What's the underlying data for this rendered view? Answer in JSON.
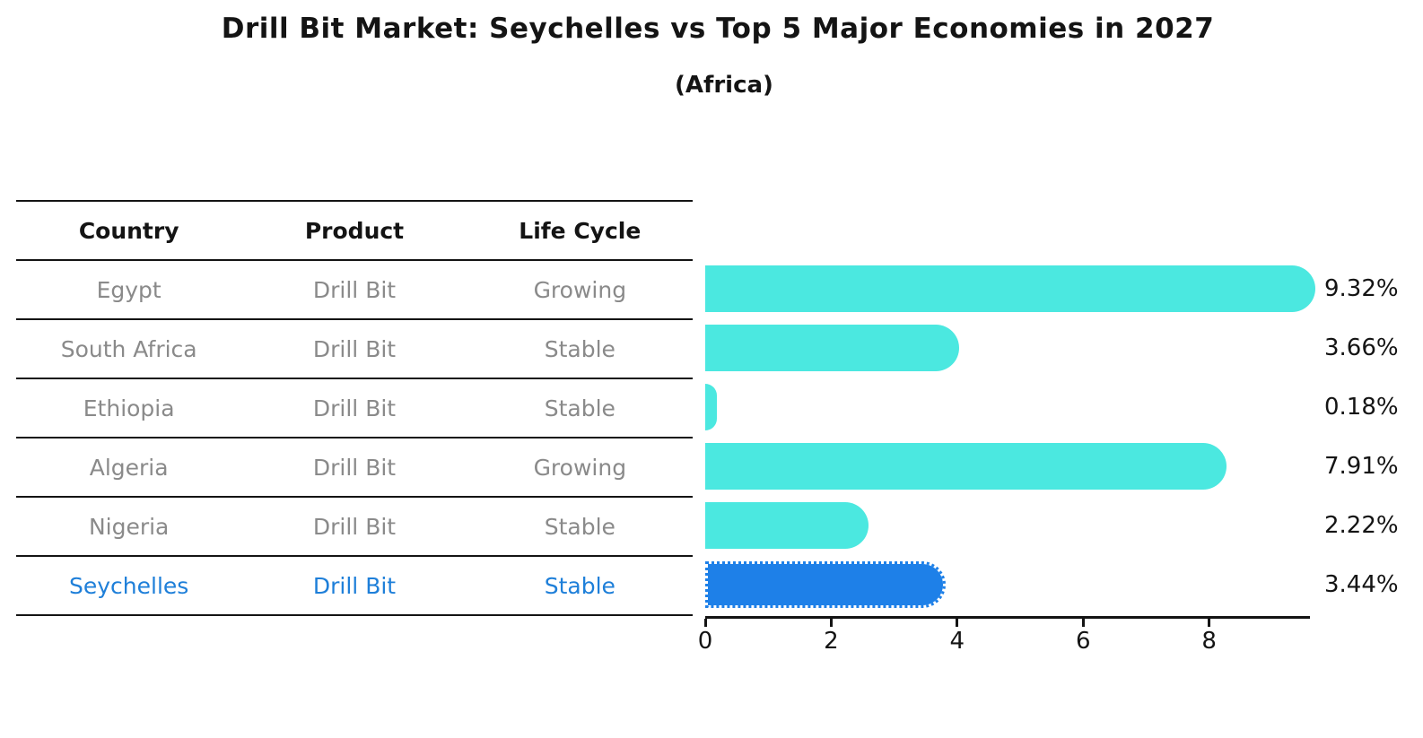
{
  "title": "Drill Bit Market: Seychelles vs Top 5 Major Economies in 2027",
  "subtitle": "(Africa)",
  "table": {
    "headers": [
      "Country",
      "Product",
      "Life Cycle"
    ],
    "rows": [
      {
        "country": "Egypt",
        "product": "Drill Bit",
        "life_cycle": "Growing",
        "highlight": false
      },
      {
        "country": "South Africa",
        "product": "Drill Bit",
        "life_cycle": "Stable",
        "highlight": false
      },
      {
        "country": "Ethiopia",
        "product": "Drill Bit",
        "life_cycle": "Stable",
        "highlight": false
      },
      {
        "country": "Algeria",
        "product": "Drill Bit",
        "life_cycle": "Growing",
        "highlight": false
      },
      {
        "country": "Nigeria",
        "product": "Drill Bit",
        "life_cycle": "Stable",
        "highlight": false
      },
      {
        "country": "Seychelles",
        "product": "Drill Bit",
        "life_cycle": "Stable",
        "highlight": true
      }
    ]
  },
  "chart_data": {
    "type": "bar",
    "orientation": "horizontal",
    "title": "Drill Bit Market: Seychelles vs Top 5 Major Economies in 2027",
    "subtitle": "(Africa)",
    "categories": [
      "Egypt",
      "South Africa",
      "Ethiopia",
      "Algeria",
      "Nigeria",
      "Seychelles"
    ],
    "values": [
      9.32,
      3.66,
      0.18,
      7.91,
      2.22,
      3.44
    ],
    "data_labels": [
      "9.32%",
      "3.66%",
      "0.18%",
      "7.91%",
      "2.22%",
      "3.44%"
    ],
    "xticks": [
      "0",
      "2",
      "4",
      "6",
      "8"
    ],
    "xlim": [
      0,
      9.6
    ],
    "grid": false,
    "legend": false,
    "highlight_index": 5,
    "highlight_style": "dotted-border"
  },
  "colors": {
    "bar_cyan": "#4be8e0",
    "bar_blue": "#1e80e8",
    "highlight_text": "#1e7fd9",
    "table_text": "#8a8a8a",
    "header_text": "#141414",
    "axis": "#141414"
  }
}
